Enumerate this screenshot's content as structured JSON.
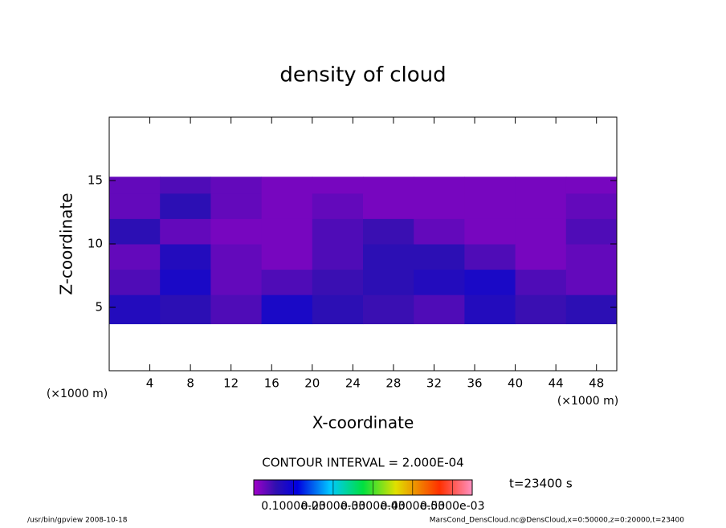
{
  "chart_data": {
    "type": "contour",
    "title": "density of cloud",
    "xlabel": "X-coordinate",
    "ylabel": "Z-coordinate",
    "x_unit_left": "(×1000 m)",
    "x_unit_right": "(×1000 m)",
    "xlim": [
      0,
      50
    ],
    "xticks": [
      4,
      8,
      12,
      16,
      20,
      24,
      28,
      32,
      36,
      40,
      44,
      48
    ],
    "ylim": [
      0,
      20
    ],
    "yticks": [
      5,
      10,
      15
    ],
    "x_bins": [
      0,
      5,
      10,
      15,
      20,
      25,
      30,
      35,
      40,
      45,
      50
    ],
    "z_bins": [
      3.7,
      6,
      8,
      10,
      12,
      14,
      15.3
    ],
    "values": [
      [
        7e-05,
        6e-05,
        4e-05,
        8e-05,
        6e-05,
        5e-05,
        4e-05,
        7e-05,
        5e-05,
        6e-05
      ],
      [
        4e-05,
        8e-05,
        3e-05,
        4e-05,
        5e-05,
        6e-05,
        7e-05,
        8e-05,
        4e-05,
        3e-05
      ],
      [
        3e-05,
        7e-05,
        3e-05,
        2e-05,
        4e-05,
        6e-05,
        6e-05,
        4e-05,
        2e-05,
        3e-05
      ],
      [
        6e-05,
        3e-05,
        2e-05,
        2e-05,
        4e-05,
        5e-05,
        3e-05,
        2e-05,
        2e-05,
        4e-05
      ],
      [
        3e-05,
        6e-05,
        3e-05,
        2e-05,
        3e-05,
        2e-05,
        2e-05,
        2e-05,
        2e-05,
        3e-05
      ],
      [
        3e-05,
        4e-05,
        3e-05,
        2e-05,
        2e-05,
        2e-05,
        2e-05,
        2e-05,
        2e-05,
        2e-05
      ]
    ],
    "contour_interval": "CONTOUR INTERVAL = 2.000E-04",
    "time_label": "t=23400 s",
    "colorbar_lim": [
      0,
      0.00055
    ],
    "colorbar_ticks": [
      {
        "value": 0.0001,
        "label": "0.1000e-03"
      },
      {
        "value": 0.0002,
        "label": "0.2000e-03"
      },
      {
        "value": 0.0003,
        "label": "0.3000e-03"
      },
      {
        "value": 0.0004,
        "label": "0.4000e-03"
      },
      {
        "value": 0.0005,
        "label": "0.5000e-03"
      }
    ],
    "footer_left": "/usr/bin/gpview   2008-10-18",
    "footer_right": "MarsCond_DensCloud.nc@DensCloud,x=0:50000,z=0:20000,t=23400"
  }
}
